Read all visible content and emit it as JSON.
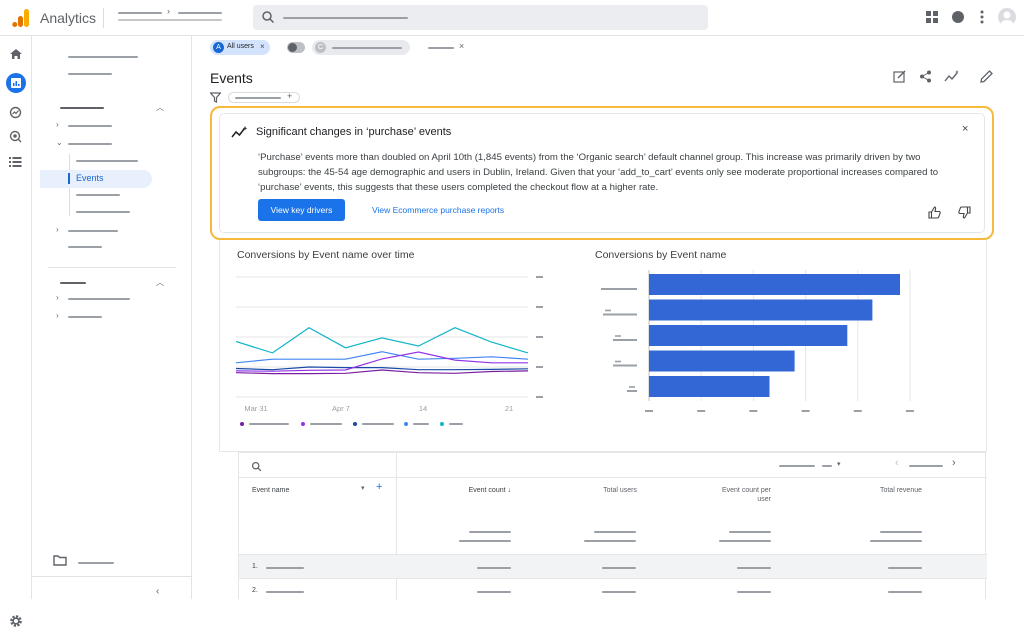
{
  "app": {
    "title": "Analytics",
    "brand_colors": [
      "#f9ab00",
      "#e37400"
    ]
  },
  "icons": [
    "analytics-logo-icon",
    "search-icon",
    "apps-grid-icon",
    "help-icon",
    "more-vert-icon",
    "account-avatar-icon",
    "home-icon",
    "reports-icon",
    "explore-icon",
    "advertising-icon",
    "configure-icon",
    "filter-icon",
    "customize-report-icon",
    "share-icon",
    "insights-icon",
    "edit-icon",
    "trend-insight-icon",
    "close-icon",
    "thumb-up-icon",
    "thumb-down-icon",
    "folder-icon",
    "settings-icon",
    "chevron-left-icon",
    "sort-desc-icon",
    "add-icon"
  ],
  "filters": {
    "segment_chip": {
      "badge": "A",
      "label": "All users",
      "close": "×"
    },
    "comparison_chip": {
      "badge": "C"
    },
    "add_chip_close": "×"
  },
  "nav": {
    "active_item": "Events"
  },
  "page": {
    "title": "Events",
    "filter_add": "+"
  },
  "insight": {
    "title": "Significant changes in ‘purchase’ events",
    "close": "×",
    "body": "‘Purchase’ events more than doubled on April 10th (1,845 events) from the ‘Organic search’ default channel group. This increase was primarily driven by two subgroups: the 45-54 age demographic and users in Dublin, Ireland. Given that your ‘add_to_cart’ events only see moderate proportional increases compared to ‘purchase’ events, this suggests that these users completed the checkout flow at a higher rate.",
    "primary_button": "View key drivers",
    "secondary_link": "View Ecommerce purchase reports"
  },
  "chart_data": [
    {
      "type": "line",
      "title": "Conversions by Event name over time",
      "x_tick_labels": [
        "Mar 31",
        "Apr 7",
        "14",
        "21"
      ],
      "series": [
        {
          "color": "#12b5cb",
          "values": [
            0.85,
            0.47,
            1.31,
            0.64,
            0.97,
            0.7,
            1.31,
            0.83,
            0.47
          ]
        },
        {
          "color": "#4285f4",
          "values": [
            0.14,
            0.26,
            0.26,
            0.26,
            0.51,
            0.26,
            0.29,
            0.34,
            0.26
          ]
        },
        {
          "color": "#1a4aa8",
          "values": [
            -0.05,
            -0.09,
            0.0,
            -0.02,
            -0.02,
            -0.09,
            -0.09,
            -0.08,
            -0.06
          ]
        },
        {
          "color": "#9334e6",
          "values": [
            -0.13,
            -0.14,
            -0.11,
            -0.1,
            0.27,
            0.5,
            0.23,
            0.14,
            0.14
          ]
        },
        {
          "color": "#7b1fa2",
          "values": [
            -0.19,
            -0.22,
            -0.22,
            -0.21,
            -0.1,
            -0.19,
            -0.21,
            -0.15,
            -0.13
          ]
        }
      ],
      "legend_colors": [
        "#7b1fa2",
        "#9334e6",
        "#1a4aa8",
        "#4285f4",
        "#12b5cb"
      ]
    },
    {
      "type": "bar",
      "title": "Conversions by Event name",
      "orientation": "horizontal",
      "color": "#3367d6",
      "values": [
        100,
        89,
        79,
        58,
        48
      ]
    }
  ],
  "table": {
    "columns": [
      {
        "label": "Event name"
      },
      {
        "label": "Event count",
        "sort": "↓"
      },
      {
        "label": "Total users"
      },
      {
        "label": "Event count per user"
      },
      {
        "label": "Total revenue"
      }
    ],
    "add_dimension": "+",
    "rows": [
      {
        "rank": "1."
      },
      {
        "rank": "2."
      }
    ]
  }
}
